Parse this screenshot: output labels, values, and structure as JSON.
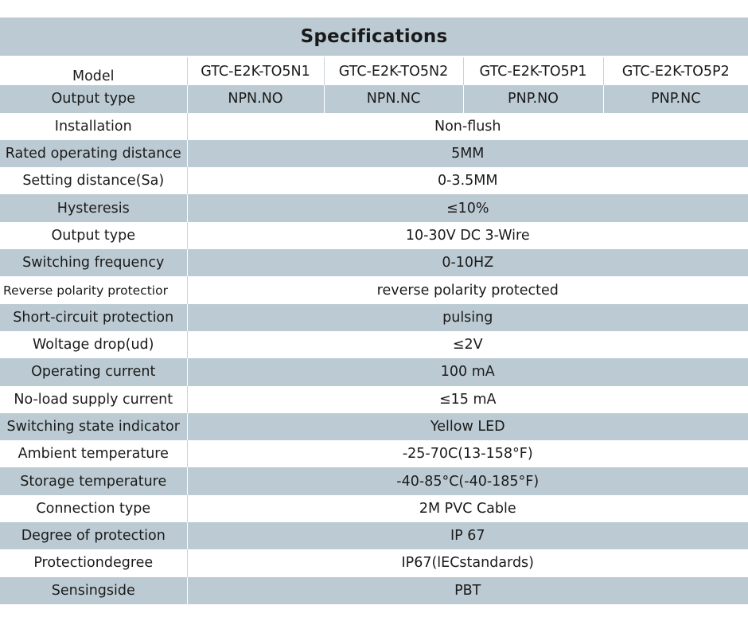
{
  "title": "Specifications",
  "columns": {
    "models": [
      "GTC-E2K-TO5N1",
      "GTC-E2K-TO5N2",
      "GTC-E2K-TO5P1",
      "GTC-E2K-TO5P2"
    ]
  },
  "rows": {
    "model_label": "Model",
    "output_type_label": "Output type",
    "output_types": [
      "NPN.NO",
      "NPN.NC",
      "PNP.NO",
      "PNP.NC"
    ],
    "installation": {
      "label": "Installation",
      "value": "Non-flush"
    },
    "rated_distance": {
      "label": "Rated operating distance",
      "value": "5MM"
    },
    "setting_distance": {
      "label": "Setting distance(Sa)",
      "value": "0-3.5MM"
    },
    "hysteresis": {
      "label": "Hysteresis",
      "value": "≤10%"
    },
    "output_type2": {
      "label": "Output type",
      "value": "10-30V DC 3-Wire"
    },
    "switching_frequency": {
      "label": "Switching frequency",
      "value": "0-10HZ"
    },
    "reverse_polarity": {
      "label": "Reverse polarity protectior",
      "value": "reverse polarity protected"
    },
    "short_circuit": {
      "label": "Short-circuit protection",
      "value": "pulsing"
    },
    "voltage_drop": {
      "label": "Woltage drop(ud)",
      "value": "≤2V"
    },
    "operating_current": {
      "label": "Operating current",
      "value": "100 mA"
    },
    "no_load_current": {
      "label": "No-load supply current",
      "value": "≤15 mA"
    },
    "state_indicator": {
      "label": "Switching state indicator",
      "value": "Yellow LED"
    },
    "ambient_temp": {
      "label": "Ambient temperature",
      "value": "-25-70C(13-158°F)"
    },
    "storage_temp": {
      "label": "Storage temperature",
      "value": "-40-85°C(-40-185°F)"
    },
    "connection_type": {
      "label": "Connection type",
      "value": "2M PVC Cable"
    },
    "degree_protection": {
      "label": "Degree of protection",
      "value": "IP 67"
    },
    "protection_degree": {
      "label": "Protectiondegree",
      "value": "IP67(lECstandards)"
    },
    "sensing_side": {
      "label": "Sensingside",
      "value": "PBT"
    }
  },
  "colors": {
    "shade": "#bccbd3",
    "text": "#1a1a1a",
    "background": "#ffffff"
  }
}
